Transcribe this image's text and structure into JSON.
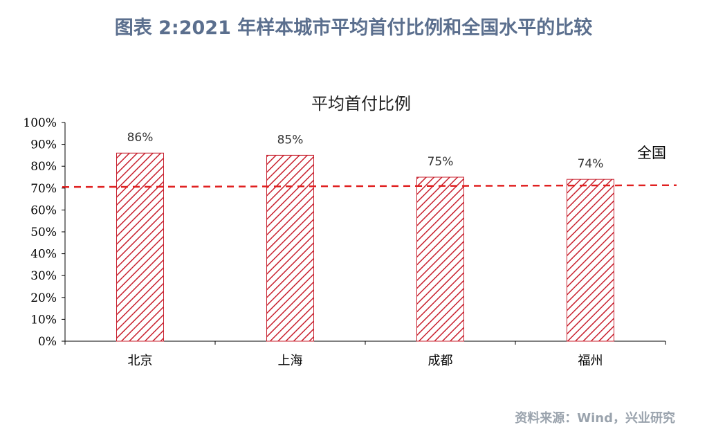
{
  "figure_title": "图表 2:2021 年样本城市平均首付比例和全国水平的比较",
  "source": "资料来源：Wind，兴业研究",
  "chart_data": {
    "type": "bar",
    "title": "平均首付比例",
    "categories": [
      "北京",
      "上海",
      "成都",
      "福州"
    ],
    "values": [
      86,
      85,
      75,
      74
    ],
    "data_labels": [
      "86%",
      "85%",
      "75%",
      "74%"
    ],
    "ylim": [
      0,
      100
    ],
    "yticks": [
      "0%",
      "10%",
      "20%",
      "30%",
      "40%",
      "50%",
      "60%",
      "70%",
      "80%",
      "90%",
      "100%"
    ],
    "reference_line": {
      "label": "全国",
      "value_start": 70.5,
      "value_end": 71.3,
      "color": "#e02020",
      "style": "dashed"
    },
    "bar_color": "#c8202e",
    "bar_fill": "diagonal-hatch"
  }
}
